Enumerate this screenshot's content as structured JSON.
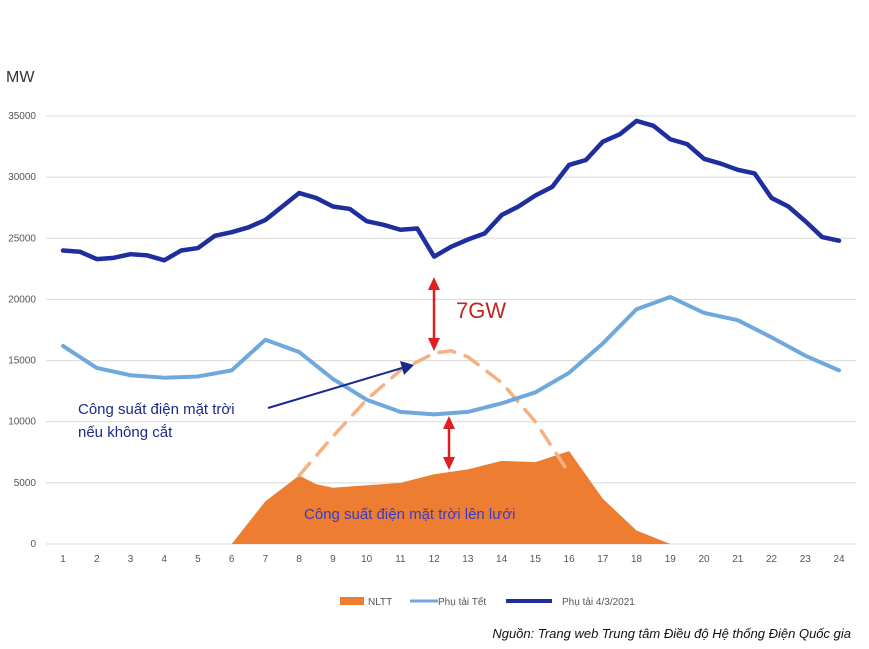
{
  "chart_data": {
    "type": "line",
    "ylabel": "MW",
    "ylim": [
      0,
      35000
    ],
    "yticks": [
      0,
      5000,
      10000,
      15000,
      20000,
      25000,
      30000,
      35000
    ],
    "categories": [
      "1",
      "2",
      "3",
      "4",
      "5",
      "6",
      "7",
      "8",
      "9",
      "10",
      "11",
      "12",
      "13",
      "14",
      "15",
      "16",
      "17",
      "18",
      "19",
      "20",
      "21",
      "22",
      "23",
      "24"
    ],
    "grid": true,
    "legend_position": "bottom",
    "series": [
      {
        "name": "NLTT",
        "kind": "area",
        "color": "#ED7D31",
        "x": [
          6,
          7,
          8,
          8.5,
          9,
          10,
          11,
          12,
          13,
          14,
          15,
          16,
          17,
          18,
          19
        ],
        "values": [
          0,
          3500,
          5600,
          4900,
          4600,
          4800,
          5000,
          5700,
          6100,
          6800,
          6700,
          7600,
          3700,
          1100,
          0
        ]
      },
      {
        "name": "Phụ tải Tết",
        "kind": "line",
        "color": "#6FA8DC",
        "x": [
          1,
          2,
          3,
          4,
          5,
          6,
          7,
          8,
          9,
          10,
          11,
          12,
          13,
          14,
          15,
          16,
          17,
          18,
          19,
          20,
          21,
          22,
          23,
          24
        ],
        "values": [
          16200,
          14400,
          13800,
          13600,
          13700,
          14200,
          16700,
          15700,
          13500,
          11800,
          10800,
          10600,
          10800,
          11500,
          12400,
          14000,
          16400,
          19200,
          20200,
          18900,
          18300,
          16900,
          15400,
          14200
        ]
      },
      {
        "name": "Phụ tải 4/3/2021",
        "kind": "line",
        "color": "#1F2E9E",
        "x": [
          1,
          1.5,
          2,
          2.5,
          3,
          3.5,
          4,
          4.5,
          5,
          5.5,
          6,
          6.5,
          7,
          7.5,
          8,
          8.5,
          9,
          9.5,
          10,
          10.5,
          11,
          11.5,
          12,
          12.5,
          13,
          13.5,
          14,
          14.5,
          15,
          15.5,
          16,
          16.5,
          17,
          17.5,
          18,
          18.5,
          19,
          19.5,
          20,
          20.5,
          21,
          21.5,
          22,
          22.5,
          23,
          23.5,
          24
        ],
        "values": [
          24000,
          23900,
          23300,
          23400,
          23700,
          23600,
          23200,
          24000,
          24200,
          25200,
          25500,
          25900,
          26500,
          27600,
          28700,
          28300,
          27600,
          27400,
          26400,
          26100,
          25700,
          25800,
          23500,
          24300,
          24900,
          25400,
          26900,
          27600,
          28500,
          29200,
          31000,
          31400,
          32900,
          33500,
          34600,
          34200,
          33100,
          32700,
          31500,
          31100,
          30600,
          30300,
          28300,
          27600,
          26400,
          25100,
          24800
        ]
      },
      {
        "name": "Công suất điện mặt trời nếu không cắt",
        "kind": "dashed",
        "color": "#F4B183",
        "x": [
          8,
          9,
          10,
          11,
          12,
          12.5,
          13,
          14,
          15,
          16
        ],
        "values": [
          5600,
          8800,
          11800,
          14200,
          15600,
          15800,
          15300,
          13200,
          10000,
          5800
        ]
      }
    ],
    "annotations": [
      {
        "text": "7GW",
        "color": "#C0261F"
      },
      {
        "text": "Công suất điện mặt trời",
        "text2": "nếu không cắt",
        "color": "#1A2A8C"
      },
      {
        "text": "Công suất điện mặt trời lên lưới",
        "color": "#3A3AC8"
      }
    ],
    "source": "Nguồn: Trang web Trung tâm Điều độ Hệ thống Điện Quốc gia"
  }
}
